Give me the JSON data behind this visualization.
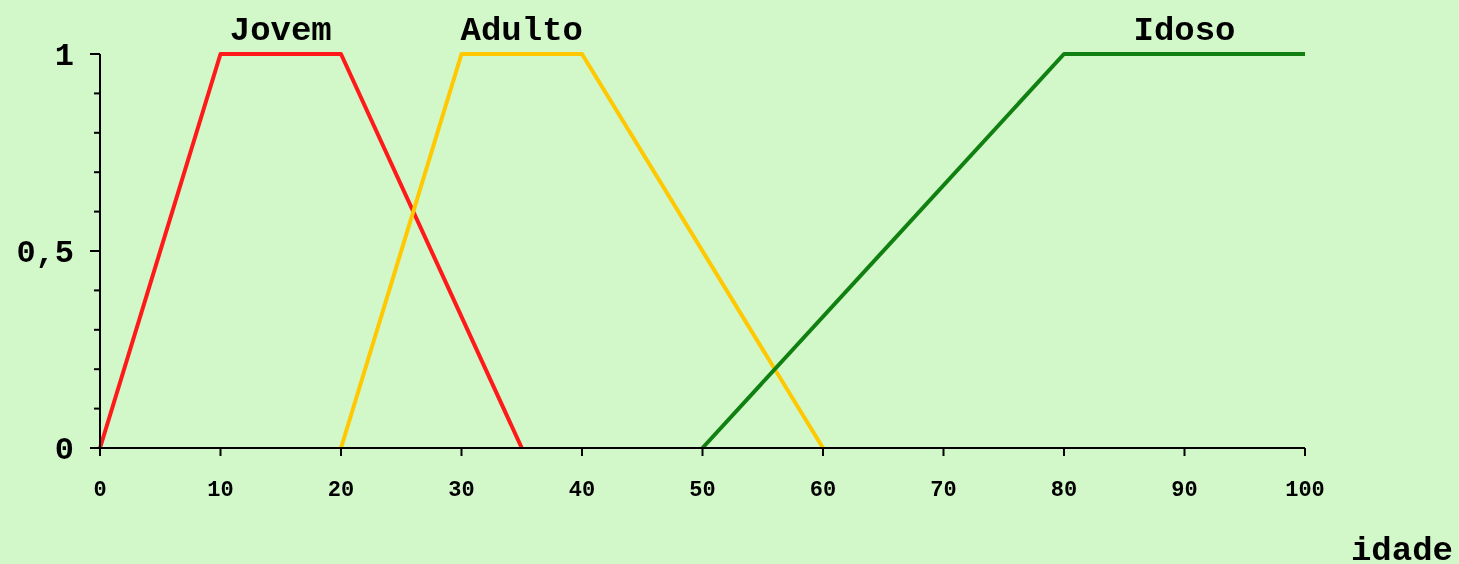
{
  "chart_data": {
    "type": "line",
    "xlabel": "idade",
    "xlim": [
      0,
      100
    ],
    "ylim": [
      0,
      1
    ],
    "xticks": [
      0,
      10,
      20,
      30,
      40,
      50,
      60,
      70,
      80,
      90,
      100
    ],
    "yticks": [
      0,
      {
        "value": 0.1,
        "label": null
      },
      {
        "value": 0.2,
        "label": null
      },
      {
        "value": 0.3,
        "label": null
      },
      {
        "value": 0.4,
        "label": null
      },
      {
        "value": 0.5,
        "label": "0,5"
      },
      {
        "value": 0.6,
        "label": null
      },
      {
        "value": 0.7,
        "label": null
      },
      {
        "value": 0.8,
        "label": null
      },
      {
        "value": 0.9,
        "label": null
      },
      1
    ],
    "grid": false,
    "legend": false,
    "marker": "none",
    "line_style": "solid",
    "series": [
      {
        "name": "Jovem",
        "color": "#ff1a1a",
        "x": [
          0,
          10,
          20,
          35
        ],
        "values": [
          0,
          1,
          1,
          0
        ]
      },
      {
        "name": "Adulto",
        "color": "#ffc800",
        "x": [
          20,
          30,
          40,
          60
        ],
        "values": [
          0,
          1,
          1,
          0
        ]
      },
      {
        "name": "Idoso",
        "color": "#108010",
        "x": [
          50,
          80,
          100
        ],
        "values": [
          0,
          1,
          1
        ]
      }
    ]
  }
}
